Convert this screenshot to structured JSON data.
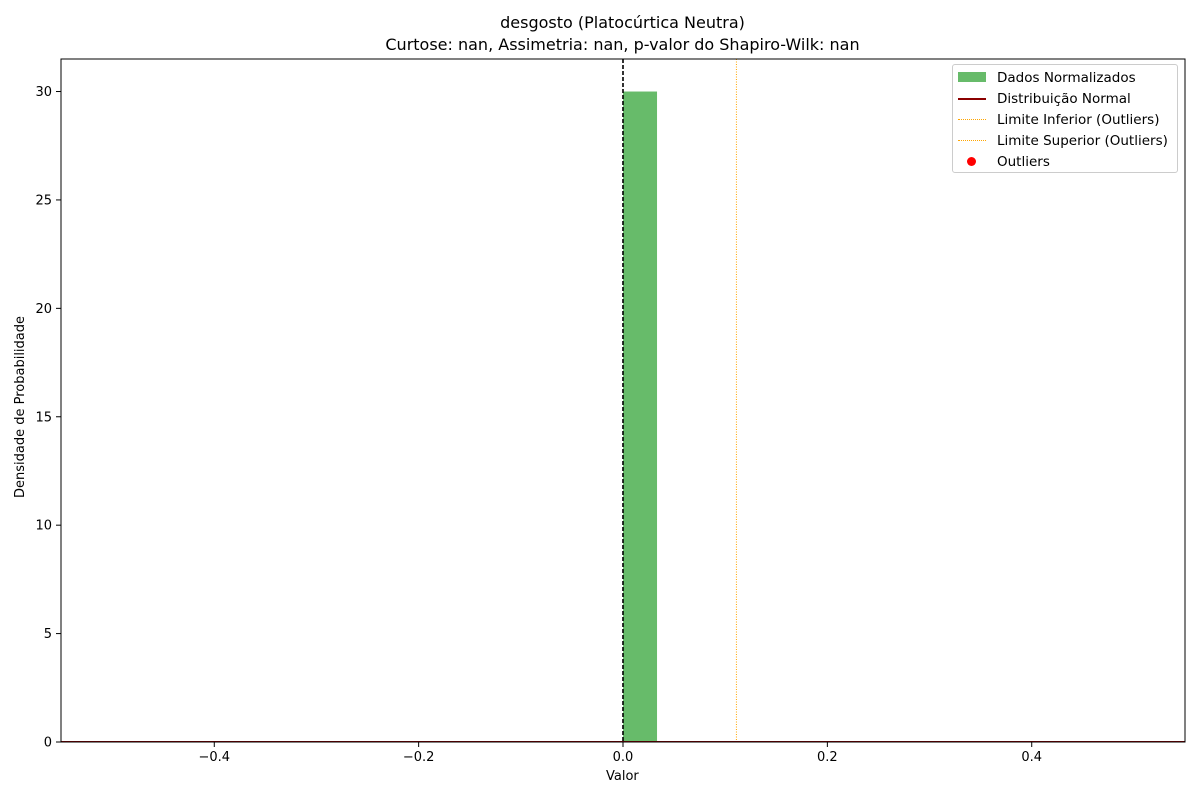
{
  "chart_data": {
    "type": "bar",
    "title": "desgosto (Platocúrtica Neutra)",
    "subtitle": "Curtose: nan, Assimetria: nan, p-valor do Shapiro-Wilk: nan",
    "xlabel": "Valor",
    "ylabel": "Densidade de Probabilidade",
    "xlim": [
      -0.55,
      0.55
    ],
    "ylim": [
      0,
      31.5
    ],
    "xticks": [
      -0.4,
      -0.2,
      0.0,
      0.2,
      0.4
    ],
    "xtick_labels": [
      "−0.4",
      "−0.2",
      "0.0",
      "0.2",
      "0.4"
    ],
    "yticks": [
      0,
      5,
      10,
      15,
      20,
      25,
      30
    ],
    "ytick_labels": [
      "0",
      "5",
      "10",
      "15",
      "20",
      "25",
      "30"
    ],
    "grid": false,
    "legend_position": "top-right",
    "histogram": {
      "name": "Dados Normalizados",
      "color": "#4caf50",
      "bins": [
        {
          "x0": 0.0,
          "x1": 0.0333,
          "value": 30
        }
      ]
    },
    "vertical_lines": [
      {
        "name": "mean",
        "x": 0.0,
        "color": "#000000",
        "style": "dashed"
      },
      {
        "name": "Limite Superior (Outliers)",
        "x": 0.111,
        "color": "#ffa500",
        "style": "dotted"
      }
    ],
    "legend": [
      {
        "label": "Dados Normalizados",
        "kind": "patch",
        "color": "#4caf50"
      },
      {
        "label": "Distribuição Normal",
        "kind": "line",
        "color": "#8b0000"
      },
      {
        "label": "Limite Inferior (Outliers)",
        "kind": "dotted",
        "color": "#ffa500"
      },
      {
        "label": "Limite Superior (Outliers)",
        "kind": "dotted",
        "color": "#ffa500"
      },
      {
        "label": "Outliers",
        "kind": "marker",
        "color": "#ff0000"
      }
    ]
  }
}
